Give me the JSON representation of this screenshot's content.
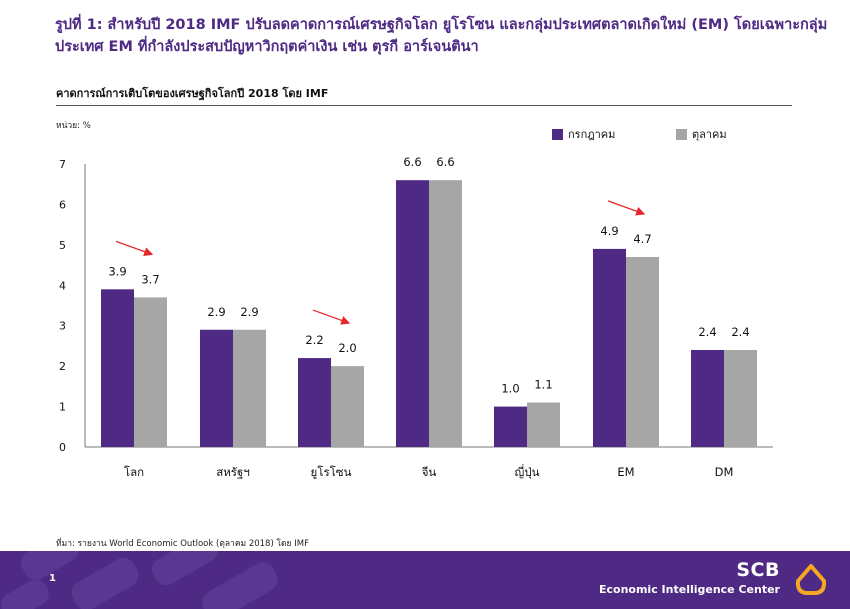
{
  "header": {
    "title": "รูปที่ 1: สำหรับปี 2018 IMF ปรับลดคาดการณ์เศรษฐกิจโลก ยูโรโซน และกลุ่มประเทศตลาดเกิดใหม่ (EM) โดยเฉพาะกลุ่มประเทศ EM ที่กำลังประสบปัญหาวิกฤตค่าเงิน เช่น ตุรกี อาร์เจนตินา",
    "subtitle": "คาดการณ์การเติบโตของเศรษฐกิจโลกปี 2018 โดย IMF",
    "unit": "หน่วย: %"
  },
  "chart_data": {
    "type": "bar",
    "categories": [
      "โลก",
      "สหรัฐฯ",
      "ยูโรโซน",
      "จีน",
      "ญี่ปุ่น",
      "EM",
      "DM"
    ],
    "series": [
      {
        "name": "กรกฎาคม",
        "values": [
          3.9,
          2.9,
          2.2,
          6.6,
          1.0,
          4.9,
          2.4
        ],
        "color": "#4e2a84"
      },
      {
        "name": "ตุลาคม",
        "values": [
          3.7,
          2.9,
          2.0,
          6.6,
          1.1,
          4.7,
          2.4
        ],
        "color": "#a6a6a6"
      }
    ],
    "data_labels": [
      [
        "3.9",
        "2.9",
        "2.2",
        "6.6",
        "1.0",
        "4.9",
        "2.4"
      ],
      [
        "3.7",
        "2.9",
        "2.0",
        "6.6",
        "1.1",
        "4.7",
        "2.4"
      ]
    ],
    "yticks": [
      "0",
      "1",
      "2",
      "3",
      "4",
      "5",
      "6",
      "7"
    ],
    "ylim": [
      0,
      7
    ],
    "grid": false,
    "legend": "top-right",
    "downgrade_arrows": [
      "โลก",
      "ยูโรโซน",
      "EM"
    ],
    "arrow_color": "#e8262b"
  },
  "footer": {
    "source": "ที่มา: รายงาน World Economic Outlook (ตุลาคม 2018) โดย IMF",
    "page": "1",
    "brand": "SCB",
    "brand_sub": "Economic Intelligence Center"
  },
  "colors": {
    "primary": "#4e2a84",
    "secondary": "#a6a6a6",
    "logo": "#f5a623"
  }
}
